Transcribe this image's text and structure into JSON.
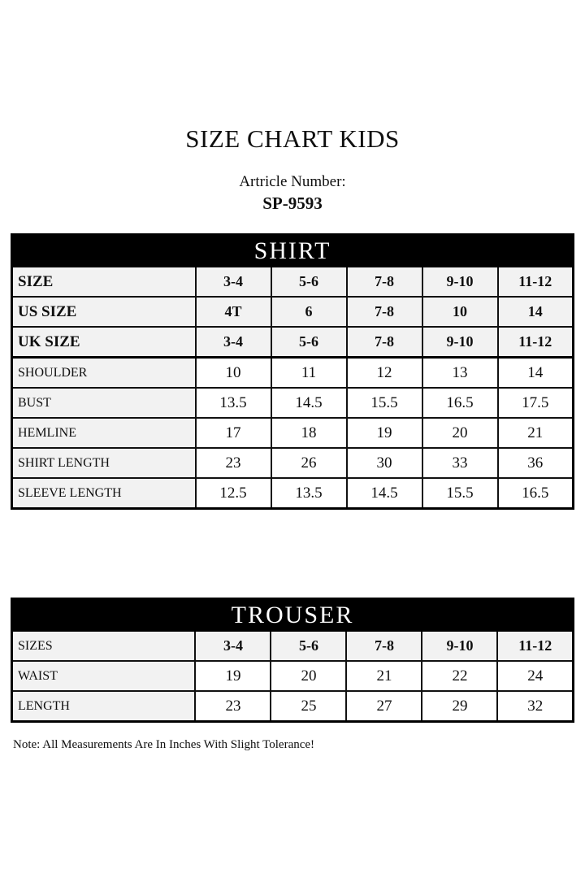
{
  "header": {
    "title": "SIZE CHART KIDS",
    "article_label": "Artricle Number:",
    "article_number": "SP-9593"
  },
  "tables": [
    {
      "title": "SHIRT",
      "rows": [
        {
          "label": "SIZE",
          "values": [
            "3-4",
            "5-6",
            "7-8",
            "9-10",
            "11-12"
          ],
          "emphasis": true,
          "label_bold": true
        },
        {
          "label": "US SIZE",
          "values": [
            "4T",
            "6",
            "7-8",
            "10",
            "14"
          ],
          "emphasis": true,
          "label_bold": true
        },
        {
          "label": "UK SIZE",
          "values": [
            "3-4",
            "5-6",
            "7-8",
            "9-10",
            "11-12"
          ],
          "emphasis": true,
          "label_bold": true,
          "group_end": true
        },
        {
          "label": "SHOULDER",
          "values": [
            "10",
            "11",
            "12",
            "13",
            "14"
          ]
        },
        {
          "label": "BUST",
          "values": [
            "13.5",
            "14.5",
            "15.5",
            "16.5",
            "17.5"
          ]
        },
        {
          "label": "HEMLINE",
          "values": [
            "17",
            "18",
            "19",
            "20",
            "21"
          ]
        },
        {
          "label": "SHIRT LENGTH",
          "values": [
            "23",
            "26",
            "30",
            "33",
            "36"
          ]
        },
        {
          "label": "SLEEVE LENGTH",
          "values": [
            "12.5",
            "13.5",
            "14.5",
            "15.5",
            "16.5"
          ]
        }
      ]
    },
    {
      "title": "TROUSER",
      "rows": [
        {
          "label": "SIZES",
          "values": [
            "3-4",
            "5-6",
            "7-8",
            "9-10",
            "11-12"
          ],
          "emphasis": true,
          "label_bold": false
        },
        {
          "label": "WAIST",
          "values": [
            "19",
            "20",
            "21",
            "22",
            "24"
          ]
        },
        {
          "label": "LENGTH",
          "values": [
            "23",
            "25",
            "27",
            "29",
            "32"
          ]
        }
      ]
    }
  ],
  "note": "Note: All Measurements Are In Inches With Slight Tolerance!",
  "colors": {
    "table_header_bg": "#000000",
    "table_header_text": "#ffffff",
    "shaded_cell_bg": "#f2f2f2",
    "cell_bg": "#ffffff",
    "border": "#000000",
    "text": "#0f0f0f"
  }
}
